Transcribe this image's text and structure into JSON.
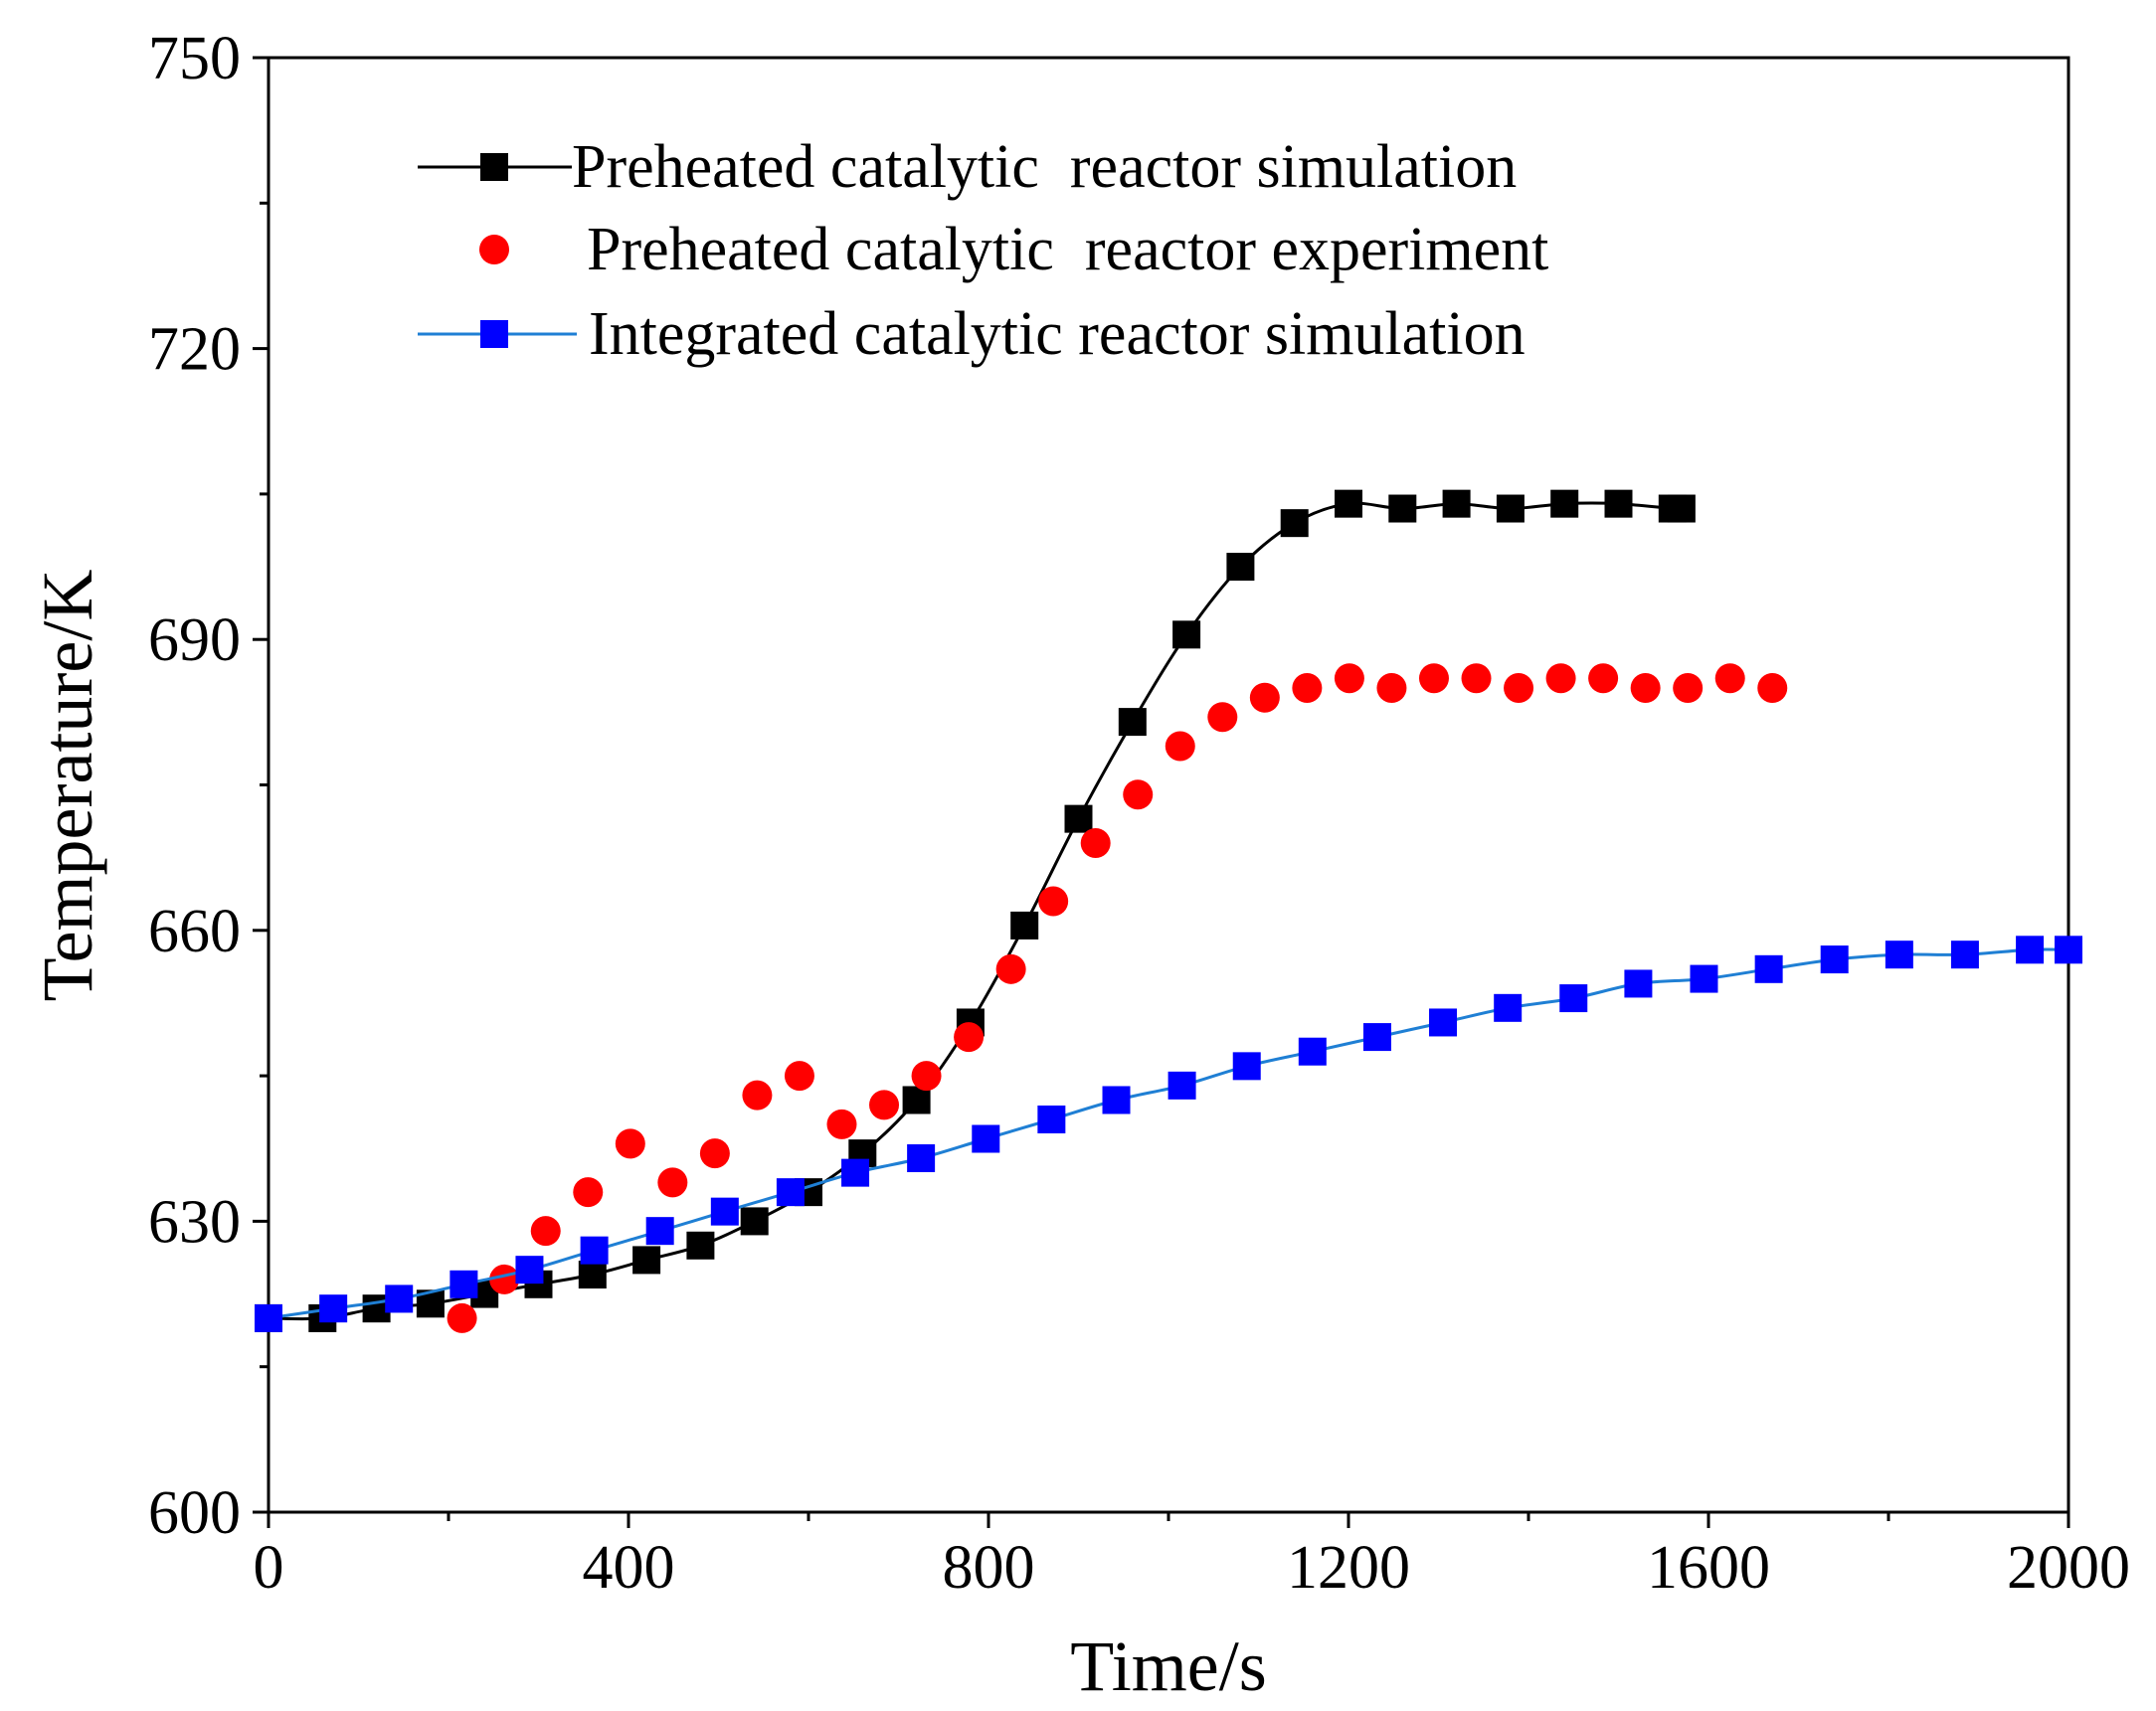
{
  "chart_data": {
    "type": "line",
    "title": "",
    "xlabel": "Time/s",
    "ylabel": "Temperature/K",
    "xlim": [
      0,
      2000
    ],
    "ylim": [
      600,
      750
    ],
    "x_ticks": [
      0,
      400,
      800,
      1200,
      1600,
      2000
    ],
    "y_ticks": [
      600,
      630,
      660,
      690,
      720,
      750
    ],
    "grid": false,
    "legend_position": "top",
    "series": [
      {
        "name": "Preheated catalytic  reactor simulation",
        "style": "line+square",
        "color": "#000000",
        "x": [
          0,
          60,
          120,
          180,
          240,
          300,
          360,
          420,
          480,
          540,
          600,
          660,
          720,
          780,
          840,
          900,
          960,
          1020,
          1080,
          1140,
          1200,
          1260,
          1320,
          1380,
          1440,
          1500,
          1560,
          1570
        ],
        "values": [
          620,
          620,
          621,
          621.5,
          622.5,
          623.5,
          624.5,
          626,
          627.5,
          630,
          633,
          637,
          642.5,
          650.5,
          660.5,
          671.5,
          681.5,
          690.5,
          697.5,
          702,
          704,
          703.5,
          704,
          703.5,
          704,
          704,
          703.5,
          703.5
        ]
      },
      {
        "name": "Preheated catalytic  reactor experiment",
        "style": "circle",
        "color": "#ff0000",
        "x": [
          215,
          262,
          308,
          355,
          402,
          449,
          496,
          543,
          590,
          637,
          684,
          731,
          778,
          825,
          872,
          919,
          966,
          1013,
          1060,
          1107,
          1154,
          1201,
          1248,
          1295,
          1342,
          1389,
          1436,
          1483,
          1530,
          1577,
          1624,
          1671
        ],
        "values": [
          620,
          624,
          629,
          633,
          638,
          634,
          637,
          643,
          645,
          640,
          642,
          645,
          649,
          656,
          663,
          669,
          674,
          679,
          682,
          684,
          685,
          686,
          685,
          686,
          686,
          685,
          686,
          686,
          685,
          685,
          686,
          685
        ]
      },
      {
        "name": "Integrated catalytic reactor simulation",
        "style": "line+square",
        "color": "#0000ff",
        "line_color": "#1f7fd4",
        "x": [
          0,
          72,
          145,
          217,
          290,
          362,
          435,
          507,
          580,
          652,
          725,
          797,
          870,
          942,
          1015,
          1087,
          1160,
          1232,
          1305,
          1377,
          1450,
          1522,
          1595,
          1667,
          1740,
          1812,
          1885,
          1957,
          2000
        ],
        "values": [
          620,
          621,
          622,
          623.5,
          625,
          627,
          629,
          631,
          633,
          635,
          636.5,
          638.5,
          640.5,
          642.5,
          644,
          646,
          647.5,
          649,
          650.5,
          652,
          653,
          654.5,
          655,
          656,
          657,
          657.5,
          657.5,
          658,
          658
        ]
      }
    ]
  }
}
